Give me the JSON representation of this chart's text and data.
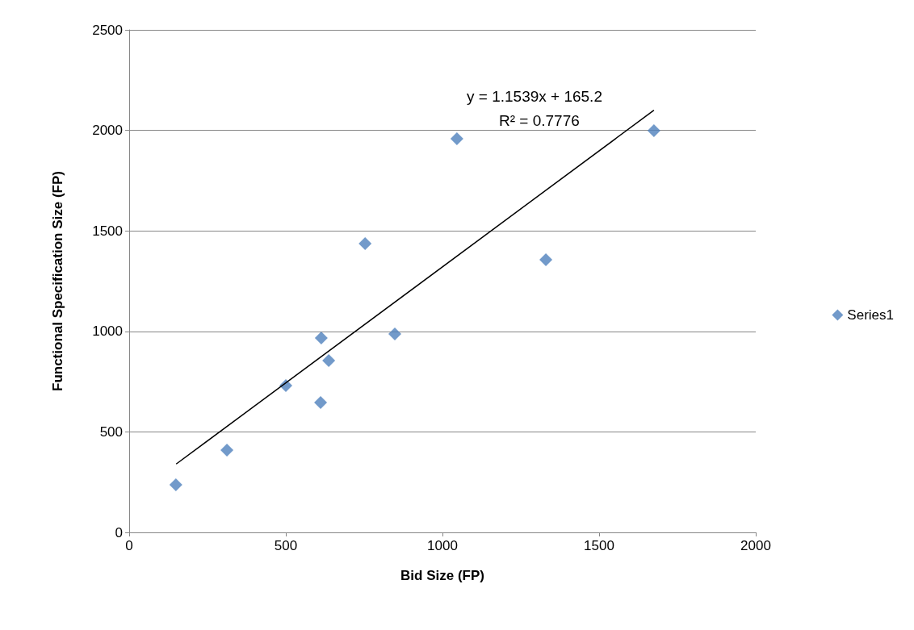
{
  "chart_data": {
    "type": "scatter",
    "xlabel": "Bid Size (FP)",
    "ylabel": "Functional Specification Size (FP)",
    "xlim": [
      0,
      2000
    ],
    "xticks": [
      0,
      500,
      1000,
      1500,
      2000
    ],
    "ylim": [
      0,
      2500
    ],
    "yticks": [
      0,
      500,
      1000,
      1500,
      2000,
      2500
    ],
    "grid": "y",
    "legend": "right",
    "marker": "diamond",
    "annotations": [
      "y = 1.1539x + 165.2",
      "R² = 0.7776"
    ],
    "series": [
      {
        "name": "Series1",
        "color": "#4f81bd",
        "x": [
          149,
          312,
          500,
          611,
          613,
          637,
          753,
          848,
          1046,
          1330,
          1675
        ],
        "values": [
          237,
          409,
          730,
          646,
          967,
          855,
          1437,
          987,
          1958,
          1356,
          1998
        ]
      },
      {
        "type": "line",
        "color": "#000000",
        "marker": "none",
        "x": [
          150,
          1675
        ],
        "values": [
          340,
          2100
        ]
      }
    ]
  }
}
